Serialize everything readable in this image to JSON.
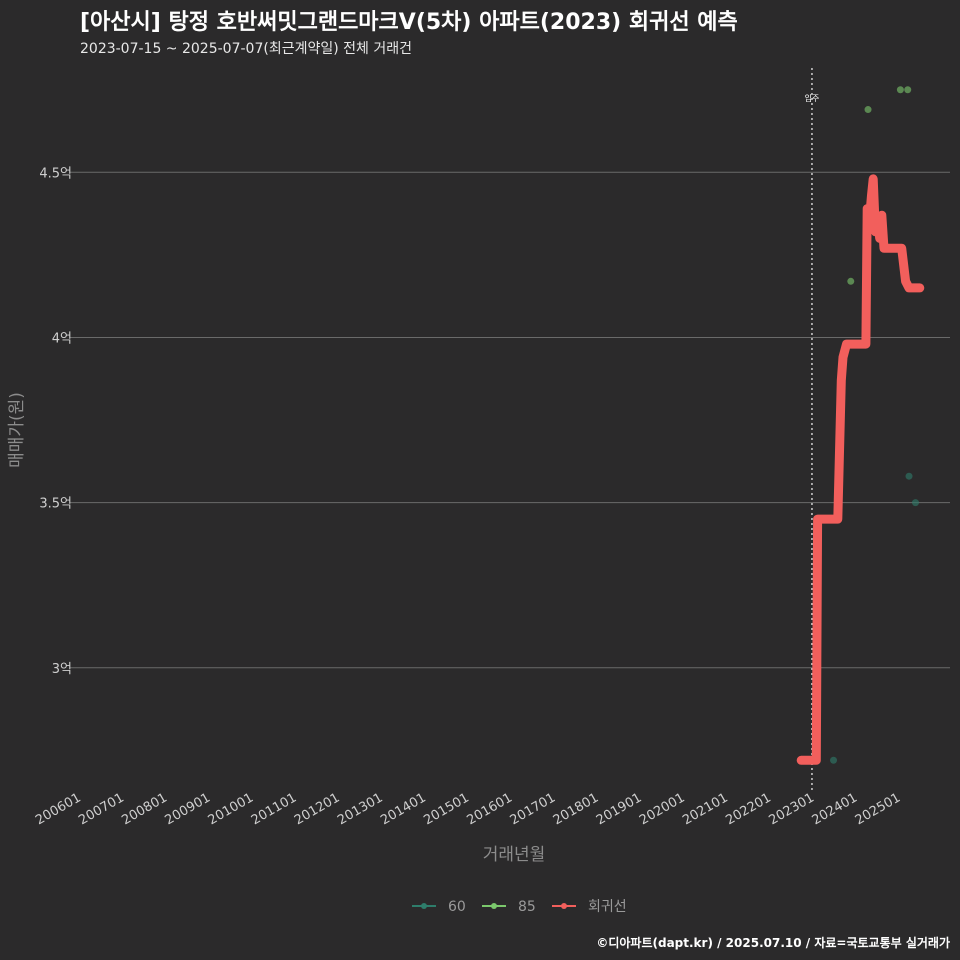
{
  "header": {
    "title": "[아산시] 탕정 호반써밋그랜드마크V(5차) 아파트(2023) 회귀선 예측",
    "subtitle": "2023-07-15 ~ 2025-07-07(최근계약일) 전체 거래건"
  },
  "caption": "©디아파트(dapt.kr) / 2025.07.10 / 자료=국토교통부 실거래가",
  "chart_data": {
    "type": "scatter",
    "xlabel": "거래년월",
    "ylabel": "매매가(원)",
    "xlim": [
      2005.8,
      2026.2
    ],
    "ylim": [
      2.63,
      4.84
    ],
    "x_ticks": [
      2006,
      2007,
      2008,
      2009,
      2010,
      2011,
      2012,
      2013,
      2014,
      2015,
      2016,
      2017,
      2018,
      2019,
      2020,
      2021,
      2022,
      2023,
      2024,
      2025
    ],
    "x_tick_labels": [
      "200601",
      "200701",
      "200801",
      "200901",
      "201001",
      "201101",
      "201201",
      "201301",
      "201401",
      "201501",
      "201601",
      "201701",
      "201801",
      "201901",
      "202001",
      "202101",
      "202201",
      "202301",
      "202401",
      "202501"
    ],
    "y_ticks": [
      3.0,
      3.5,
      4.0,
      4.5
    ],
    "y_tick_labels": [
      "3억",
      "3.5억",
      "4억",
      "4.5억"
    ],
    "move_in": {
      "x": 2023.0,
      "label": "입주"
    },
    "series": [
      {
        "name": "60",
        "color": "#2e7d6b",
        "points": [
          [
            2023.5,
            2.72
          ],
          [
            2025.25,
            3.58
          ],
          [
            2025.4,
            3.5
          ]
        ]
      },
      {
        "name": "85",
        "color": "#7bc86c",
        "points": [
          [
            2024.3,
            4.69
          ],
          [
            2025.05,
            4.75
          ],
          [
            2025.22,
            4.75
          ],
          [
            2023.9,
            4.17
          ]
        ]
      },
      {
        "name": "회귀선",
        "color": "#f25f5c",
        "points": [
          [
            2022.75,
            2.72
          ],
          [
            2023.1,
            2.72
          ],
          [
            2023.13,
            3.45
          ],
          [
            2023.6,
            3.45
          ],
          [
            2023.68,
            3.87
          ],
          [
            2023.72,
            3.94
          ],
          [
            2023.8,
            3.98
          ],
          [
            2024.25,
            3.98
          ],
          [
            2024.28,
            4.39
          ],
          [
            2024.33,
            4.35
          ],
          [
            2024.38,
            4.43
          ],
          [
            2024.42,
            4.48
          ],
          [
            2024.47,
            4.32
          ],
          [
            2024.52,
            4.36
          ],
          [
            2024.57,
            4.3
          ],
          [
            2024.62,
            4.37
          ],
          [
            2024.67,
            4.27
          ],
          [
            2024.92,
            4.27
          ],
          [
            2025.08,
            4.27
          ],
          [
            2025.17,
            4.17
          ],
          [
            2025.25,
            4.15
          ],
          [
            2025.5,
            4.15
          ]
        ]
      }
    ]
  }
}
